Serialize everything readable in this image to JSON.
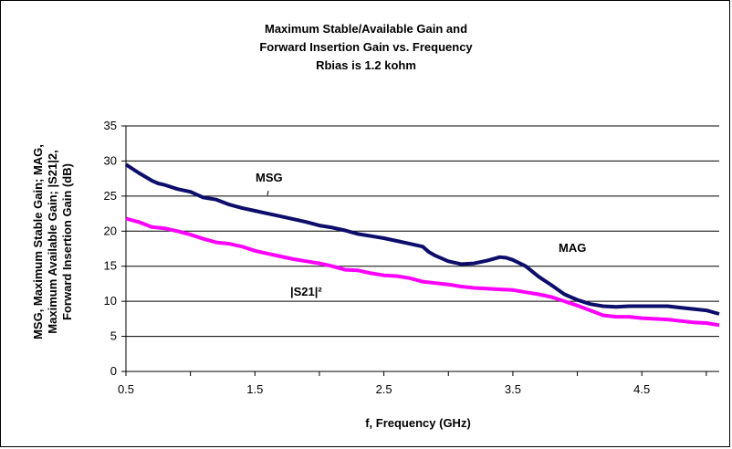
{
  "chart_data": {
    "type": "line",
    "title": [
      "Maximum Stable/Available Gain and",
      "Forward Insertion Gain vs. Frequency",
      "Rbias is 1.2 kohm"
    ],
    "xlabel": "f, Frequency (GHz)",
    "ylabel": [
      "MSG, Maximum Stable Gain; MAG,",
      "Maximum Available Gain; |S21|2,",
      "Forward Insertion Gain (dB)"
    ],
    "xlim": [
      0.5,
      5.1
    ],
    "ylim": [
      0,
      35
    ],
    "x_ticks": [
      "0.5",
      "1.5",
      "2.5",
      "3.5",
      "4.5"
    ],
    "y_ticks": [
      "0",
      "5",
      "10",
      "15",
      "20",
      "25",
      "30",
      "35"
    ],
    "grid": "horizontal",
    "annotations": {
      "msg": "MSG",
      "mag": "MAG",
      "s21": "|S21|²"
    },
    "series": [
      {
        "color": "#0d0d6b",
        "x": [
          0.5,
          0.6,
          0.7,
          0.75,
          0.8,
          0.9,
          1.0,
          1.1,
          1.2,
          1.3,
          1.4,
          1.5,
          1.6,
          1.7,
          1.8,
          1.9,
          2.0,
          2.1,
          2.2,
          2.3,
          2.4,
          2.5,
          2.6,
          2.7,
          2.8,
          2.85,
          2.9,
          3.0,
          3.1,
          3.2,
          3.3,
          3.4,
          3.45,
          3.5,
          3.6,
          3.7,
          3.8,
          3.9,
          4.0,
          4.1,
          4.2,
          4.3,
          4.4,
          4.5,
          4.6,
          4.7,
          4.8,
          4.9,
          5.0,
          5.1
        ],
        "values": [
          29.5,
          28.3,
          27.2,
          26.8,
          26.6,
          26.0,
          25.6,
          24.8,
          24.5,
          23.8,
          23.3,
          22.9,
          22.5,
          22.1,
          21.7,
          21.3,
          20.8,
          20.5,
          20.1,
          19.6,
          19.3,
          19.0,
          18.6,
          18.2,
          17.8,
          17.0,
          16.5,
          15.7,
          15.3,
          15.4,
          15.8,
          16.3,
          16.2,
          15.9,
          15.0,
          13.5,
          12.3,
          11.0,
          10.2,
          9.6,
          9.3,
          9.2,
          9.3,
          9.3,
          9.3,
          9.3,
          9.1,
          8.9,
          8.7,
          8.2
        ]
      },
      {
        "color": "#ff00ff",
        "x": [
          0.5,
          0.6,
          0.7,
          0.8,
          0.9,
          1.0,
          1.1,
          1.2,
          1.3,
          1.4,
          1.5,
          1.6,
          1.7,
          1.8,
          1.9,
          2.0,
          2.1,
          2.2,
          2.3,
          2.4,
          2.5,
          2.6,
          2.7,
          2.8,
          2.9,
          3.0,
          3.1,
          3.2,
          3.3,
          3.4,
          3.5,
          3.6,
          3.7,
          3.8,
          3.9,
          4.0,
          4.1,
          4.2,
          4.3,
          4.4,
          4.5,
          4.6,
          4.7,
          4.8,
          4.9,
          5.0,
          5.1
        ],
        "values": [
          21.8,
          21.3,
          20.6,
          20.4,
          20.0,
          19.5,
          18.9,
          18.4,
          18.2,
          17.8,
          17.2,
          16.8,
          16.4,
          16.0,
          15.7,
          15.4,
          15.0,
          14.5,
          14.4,
          14.0,
          13.7,
          13.6,
          13.3,
          12.8,
          12.6,
          12.4,
          12.1,
          11.9,
          11.8,
          11.7,
          11.6,
          11.3,
          11.0,
          10.6,
          10.0,
          9.4,
          8.7,
          8.0,
          7.8,
          7.8,
          7.6,
          7.5,
          7.4,
          7.2,
          7.0,
          6.9,
          6.6
        ]
      }
    ]
  }
}
